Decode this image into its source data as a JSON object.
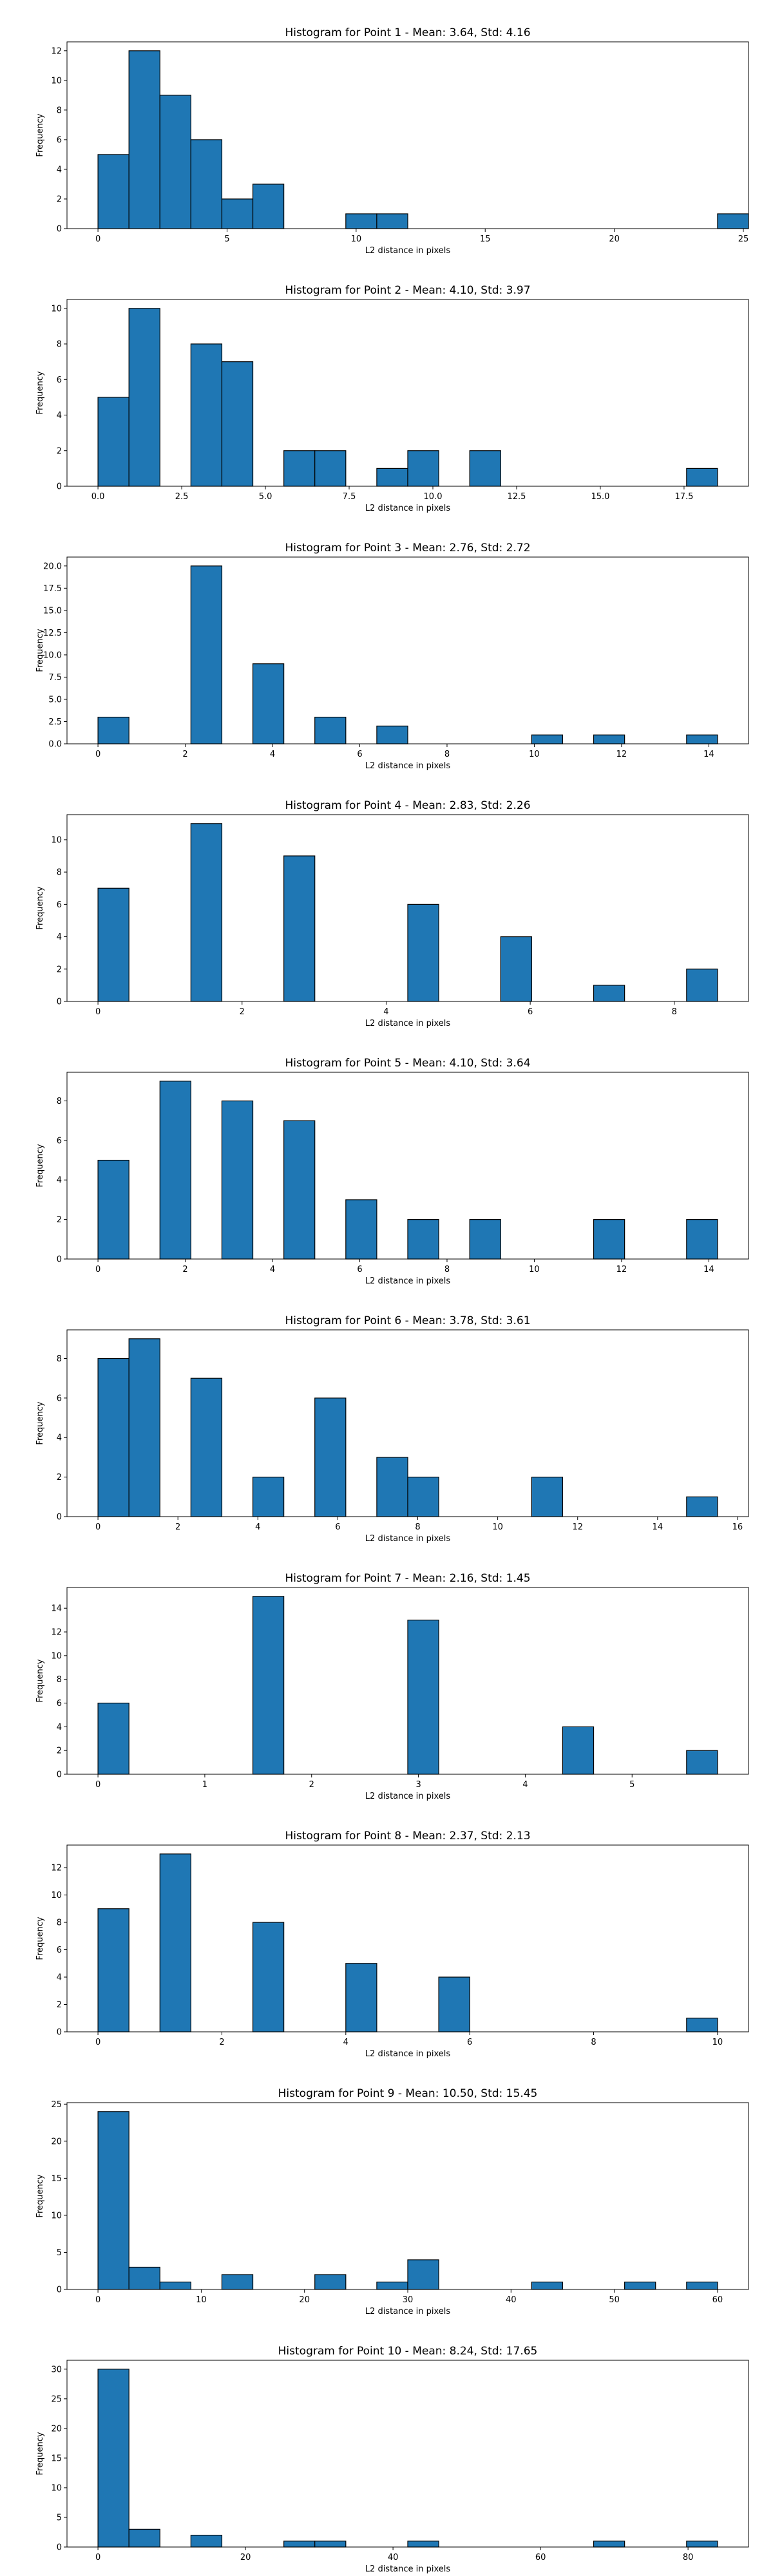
{
  "chart_data": [
    {
      "type": "bar",
      "title": "Histogram for Point 1 - Mean: 3.64, Std: 4.16",
      "xlabel": "L2 distance in pixels",
      "ylabel": "Frequency",
      "bin_start": 0,
      "bin_width": 1.2,
      "counts": [
        5,
        12,
        9,
        6,
        2,
        3,
        0,
        0,
        1,
        1,
        0,
        0,
        0,
        0,
        0,
        0,
        0,
        0,
        0,
        0,
        1
      ],
      "xlim": [
        -1.2,
        25.2
      ],
      "ylim": [
        0,
        12.6
      ],
      "xticks": [
        0,
        5,
        10,
        15,
        20,
        25
      ],
      "xtick_labels": [
        "0",
        "5",
        "10",
        "15",
        "20",
        "25"
      ],
      "yticks": [
        0,
        2,
        4,
        6,
        8,
        10,
        12
      ],
      "ytick_labels": [
        "0",
        "2",
        "4",
        "6",
        "8",
        "10",
        "12"
      ],
      "color": "#1f77b4"
    },
    {
      "type": "bar",
      "title": "Histogram for Point 2 - Mean: 4.10, Std: 3.97",
      "xlabel": "L2 distance in pixels",
      "ylabel": "Frequency",
      "bin_start": 0,
      "bin_width": 0.925,
      "counts": [
        5,
        10,
        0,
        8,
        7,
        0,
        2,
        2,
        0,
        1,
        2,
        0,
        2,
        0,
        0,
        0,
        0,
        0,
        0,
        1
      ],
      "xlim": [
        -0.925,
        19.425
      ],
      "ylim": [
        0,
        10.5
      ],
      "xticks": [
        0,
        2.5,
        5,
        7.5,
        10,
        12.5,
        15,
        17.5
      ],
      "xtick_labels": [
        "0.0",
        "2.5",
        "5.0",
        "7.5",
        "10.0",
        "12.5",
        "15.0",
        "17.5"
      ],
      "yticks": [
        0,
        2,
        4,
        6,
        8,
        10
      ],
      "ytick_labels": [
        "0",
        "2",
        "4",
        "6",
        "8",
        "10"
      ],
      "color": "#1f77b4"
    },
    {
      "type": "bar",
      "title": "Histogram for Point 3 - Mean: 2.76, Std: 2.72",
      "xlabel": "L2 distance in pixels",
      "ylabel": "Frequency",
      "bin_start": 0,
      "bin_width": 0.71,
      "counts": [
        3,
        0,
        0,
        20,
        0,
        9,
        0,
        3,
        0,
        2,
        0,
        0,
        0,
        0,
        1,
        0,
        1,
        0,
        0,
        1
      ],
      "xlim": [
        -0.71,
        14.91
      ],
      "ylim": [
        0,
        21
      ],
      "xticks": [
        0,
        2,
        4,
        6,
        8,
        10,
        12,
        14
      ],
      "xtick_labels": [
        "0",
        "2",
        "4",
        "6",
        "8",
        "10",
        "12",
        "14"
      ],
      "yticks": [
        0,
        2.5,
        5,
        7.5,
        10,
        12.5,
        15,
        17.5,
        20
      ],
      "ytick_labels": [
        "0.0",
        "2.5",
        "5.0",
        "7.5",
        "10.0",
        "12.5",
        "15.0",
        "17.5",
        "20.0"
      ],
      "color": "#1f77b4"
    },
    {
      "type": "bar",
      "title": "Histogram for Point 4 - Mean: 2.83, Std: 2.26",
      "xlabel": "L2 distance in pixels",
      "ylabel": "Frequency",
      "bin_start": 0,
      "bin_width": 0.43,
      "counts": [
        7,
        0,
        0,
        11,
        0,
        0,
        9,
        0,
        0,
        0,
        6,
        0,
        0,
        4,
        0,
        0,
        1,
        0,
        0,
        2
      ],
      "xlim": [
        -0.43,
        9.03
      ],
      "ylim": [
        0,
        11.55
      ],
      "xticks": [
        0,
        2,
        4,
        6,
        8
      ],
      "xtick_labels": [
        "0",
        "2",
        "4",
        "6",
        "8"
      ],
      "yticks": [
        0,
        2,
        4,
        6,
        8,
        10
      ],
      "ytick_labels": [
        "0",
        "2",
        "4",
        "6",
        "8",
        "10"
      ],
      "color": "#1f77b4"
    },
    {
      "type": "bar",
      "title": "Histogram for Point 5 - Mean: 4.10, Std: 3.64",
      "xlabel": "L2 distance in pixels",
      "ylabel": "Frequency",
      "bin_start": 0,
      "bin_width": 0.71,
      "counts": [
        5,
        0,
        9,
        0,
        8,
        0,
        7,
        0,
        3,
        0,
        2,
        0,
        2,
        0,
        0,
        0,
        2,
        0,
        0,
        2
      ],
      "xlim": [
        -0.71,
        14.91
      ],
      "ylim": [
        0,
        9.45
      ],
      "xticks": [
        0,
        2,
        4,
        6,
        8,
        10,
        12,
        14
      ],
      "xtick_labels": [
        "0",
        "2",
        "4",
        "6",
        "8",
        "10",
        "12",
        "14"
      ],
      "yticks": [
        0,
        2,
        4,
        6,
        8
      ],
      "ytick_labels": [
        "0",
        "2",
        "4",
        "6",
        "8"
      ],
      "color": "#1f77b4"
    },
    {
      "type": "bar",
      "title": "Histogram for Point 6 - Mean: 3.78, Std: 3.61",
      "xlabel": "L2 distance in pixels",
      "ylabel": "Frequency",
      "bin_start": 0,
      "bin_width": 0.775,
      "counts": [
        8,
        9,
        0,
        7,
        0,
        2,
        0,
        6,
        0,
        3,
        2,
        0,
        0,
        0,
        2,
        0,
        0,
        0,
        0,
        1
      ],
      "xlim": [
        -0.775,
        16.275
      ],
      "ylim": [
        0,
        9.45
      ],
      "xticks": [
        0,
        2,
        4,
        6,
        8,
        10,
        12,
        14,
        16
      ],
      "xtick_labels": [
        "0",
        "2",
        "4",
        "6",
        "8",
        "10",
        "12",
        "14",
        "16"
      ],
      "yticks": [
        0,
        2,
        4,
        6,
        8
      ],
      "ytick_labels": [
        "0",
        "2",
        "4",
        "6",
        "8"
      ],
      "color": "#1f77b4"
    },
    {
      "type": "bar",
      "title": "Histogram for Point 7 - Mean: 2.16, Std: 1.45",
      "xlabel": "L2 distance in pixels",
      "ylabel": "Frequency",
      "bin_start": 0,
      "bin_width": 0.29,
      "counts": [
        6,
        0,
        0,
        0,
        0,
        15,
        0,
        0,
        0,
        0,
        13,
        0,
        0,
        0,
        0,
        4,
        0,
        0,
        0,
        2
      ],
      "xlim": [
        -0.29,
        6.09
      ],
      "ylim": [
        0,
        15.75
      ],
      "xticks": [
        0,
        1,
        2,
        3,
        4,
        5
      ],
      "xtick_labels": [
        "0",
        "1",
        "2",
        "3",
        "4",
        "5"
      ],
      "yticks": [
        0,
        2,
        4,
        6,
        8,
        10,
        12,
        14
      ],
      "ytick_labels": [
        "0",
        "2",
        "4",
        "6",
        "8",
        "10",
        "12",
        "14"
      ],
      "color": "#1f77b4"
    },
    {
      "type": "bar",
      "title": "Histogram for Point 8 - Mean: 2.37, Std: 2.13",
      "xlabel": "L2 distance in pixels",
      "ylabel": "Frequency",
      "bin_start": 0,
      "bin_width": 0.5,
      "counts": [
        9,
        0,
        13,
        0,
        0,
        8,
        0,
        0,
        5,
        0,
        0,
        4,
        0,
        0,
        0,
        0,
        0,
        0,
        0,
        1
      ],
      "xlim": [
        -0.5,
        10.5
      ],
      "ylim": [
        0,
        13.65
      ],
      "xticks": [
        0,
        2,
        4,
        6,
        8,
        10
      ],
      "xtick_labels": [
        "0",
        "2",
        "4",
        "6",
        "8",
        "10"
      ],
      "yticks": [
        0,
        2,
        4,
        6,
        8,
        10,
        12
      ],
      "ytick_labels": [
        "0",
        "2",
        "4",
        "6",
        "8",
        "10",
        "12"
      ],
      "color": "#1f77b4"
    },
    {
      "type": "bar",
      "title": "Histogram for Point 9 - Mean: 10.50, Std: 15.45",
      "xlabel": "L2 distance in pixels",
      "ylabel": "Frequency",
      "bin_start": 0,
      "bin_width": 3,
      "counts": [
        24,
        3,
        1,
        0,
        2,
        0,
        0,
        2,
        0,
        1,
        4,
        0,
        0,
        0,
        1,
        0,
        0,
        1,
        0,
        1
      ],
      "xlim": [
        -3,
        63
      ],
      "ylim": [
        0,
        25.2
      ],
      "xticks": [
        0,
        10,
        20,
        30,
        40,
        50,
        60
      ],
      "xtick_labels": [
        "0",
        "10",
        "20",
        "30",
        "40",
        "50",
        "60"
      ],
      "yticks": [
        0,
        5,
        10,
        15,
        20,
        25
      ],
      "ytick_labels": [
        "0",
        "5",
        "10",
        "15",
        "20",
        "25"
      ],
      "color": "#1f77b4"
    },
    {
      "type": "bar",
      "title": "Histogram for Point 10 - Mean: 8.24, Std: 17.65",
      "xlabel": "L2 distance in pixels",
      "ylabel": "Frequency",
      "bin_start": 0,
      "bin_width": 4.2,
      "counts": [
        30,
        3,
        0,
        2,
        0,
        0,
        1,
        1,
        0,
        0,
        1,
        0,
        0,
        0,
        0,
        0,
        1,
        0,
        0,
        1
      ],
      "xlim": [
        -4.2,
        88.2
      ],
      "ylim": [
        0,
        31.5
      ],
      "xticks": [
        0,
        20,
        40,
        60,
        80
      ],
      "xtick_labels": [
        "0",
        "20",
        "40",
        "60",
        "80"
      ],
      "yticks": [
        0,
        5,
        10,
        15,
        20,
        25,
        30
      ],
      "ytick_labels": [
        "0",
        "5",
        "10",
        "15",
        "20",
        "25",
        "30"
      ],
      "color": "#1f77b4"
    }
  ]
}
